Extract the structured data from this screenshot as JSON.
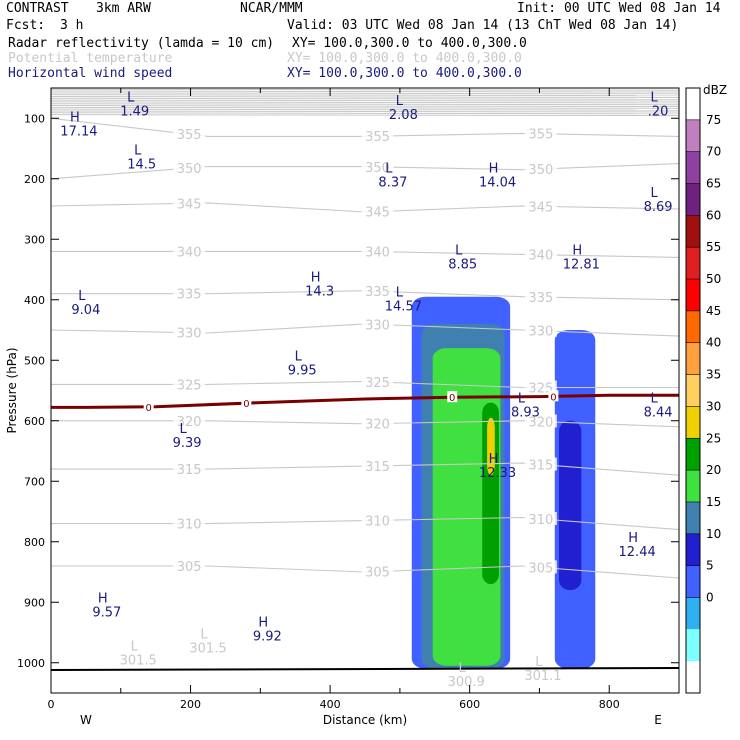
{
  "header": {
    "experiment": "CONTRAST",
    "model": "3km ARW",
    "center": "NCAR/MMM",
    "init": "Init: 00 UTC Wed 08 Jan 14",
    "fcst_label": "Fcst:",
    "fcst_value": "3 h",
    "valid": "Valid: 03 UTC Wed 08 Jan 14 (13 ChT Wed 08 Jan 14)"
  },
  "fields": [
    {
      "name": "Radar reflectivity (lamda = 10 cm)",
      "xy": "XY= 100.0,300.0 to 400.0,300.0",
      "color": "#000000"
    },
    {
      "name": "Potential temperature",
      "xy": "XY= 100.0,300.0 to 400.0,300.0",
      "color": "#c8c8c8"
    },
    {
      "name": "Horizontal wind speed",
      "xy": "XY= 100.0,300.0 to 400.0,300.0",
      "color": "#1a1a80"
    }
  ],
  "chart_data": {
    "type": "heatmap",
    "xlabel": "Distance (km)",
    "ylabel": "Pressure (hPa)",
    "xlim": [
      0,
      900
    ],
    "ylim": [
      1050,
      50
    ],
    "x_ticks": [
      0,
      200,
      400,
      600,
      800
    ],
    "y_ticks": [
      100,
      200,
      300,
      400,
      500,
      600,
      700,
      800,
      900,
      1000
    ],
    "x_end_labels": {
      "left": "W",
      "right": "E"
    },
    "colorbar": {
      "unit": "dBZ",
      "levels": [
        75,
        70,
        65,
        60,
        55,
        50,
        45,
        40,
        35,
        30,
        25,
        20,
        15,
        10,
        5,
        0
      ],
      "colors": [
        "#ffffff",
        "#c080c0",
        "#9040a0",
        "#702080",
        "#a01010",
        "#e02020",
        "#ff0000",
        "#ff6a00",
        "#ffa040",
        "#ffd060",
        "#f0d000",
        "#00a000",
        "#40e040",
        "#4080b0",
        "#2020d0",
        "#4060ff",
        "#30b0f0",
        "#80ffff",
        "#ffffff"
      ]
    },
    "reflectivity_cells": [
      {
        "level": 5,
        "x_range": [
          517,
          658
        ],
        "p_range": [
          395,
          1010
        ]
      },
      {
        "level": 15,
        "x_range": [
          531,
          650
        ],
        "p_range": [
          440,
          1010
        ]
      },
      {
        "level": 20,
        "x_range": [
          547,
          644
        ],
        "p_range": [
          480,
          1005
        ]
      },
      {
        "level": 5,
        "x_range": [
          722,
          780
        ],
        "p_range": [
          450,
          1010
        ]
      },
      {
        "level": 10,
        "x_range": [
          728,
          760
        ],
        "p_range": [
          600,
          880
        ]
      },
      {
        "level": 25,
        "x_range": [
          618,
          642
        ],
        "p_range": [
          570,
          870
        ]
      },
      {
        "level": 30,
        "x_range": [
          625,
          636
        ],
        "p_range": [
          595,
          690
        ]
      }
    ],
    "theta_contours": [
      {
        "value": 355,
        "p": [
          100,
          130,
          130,
          125,
          130
        ]
      },
      {
        "value": 350,
        "p": [
          200,
          180,
          180,
          185,
          175
        ]
      },
      {
        "value": 345,
        "p": [
          245,
          240,
          255,
          245,
          250
        ]
      },
      {
        "value": 340,
        "p": [
          320,
          320,
          320,
          325,
          330
        ]
      },
      {
        "value": 335,
        "p": [
          390,
          390,
          385,
          395,
          400
        ]
      },
      {
        "value": 330,
        "p": [
          450,
          455,
          440,
          450,
          460
        ]
      },
      {
        "value": 325,
        "p": [
          540,
          540,
          535,
          545,
          545
        ]
      },
      {
        "value": 320,
        "p": [
          600,
          600,
          605,
          600,
          610
        ]
      },
      {
        "value": 315,
        "p": [
          680,
          680,
          675,
          670,
          690
        ]
      },
      {
        "value": 310,
        "p": [
          770,
          770,
          765,
          760,
          780
        ]
      },
      {
        "value": 305,
        "p": [
          840,
          840,
          850,
          840,
          860
        ]
      }
    ],
    "zero_line": {
      "label": "0",
      "points": [
        [
          0,
          578
        ],
        [
          50,
          578
        ],
        [
          150,
          577
        ],
        [
          300,
          570
        ],
        [
          450,
          564
        ],
        [
          575,
          561
        ],
        [
          700,
          560
        ],
        [
          800,
          558
        ],
        [
          900,
          558
        ]
      ]
    },
    "wind_extrema": [
      {
        "kind": "L",
        "value": "1.49",
        "x": 120,
        "p": 72
      },
      {
        "kind": "H",
        "value": "17.14",
        "x": 40,
        "p": 105
      },
      {
        "kind": "L",
        "value": "14.5",
        "x": 130,
        "p": 160
      },
      {
        "kind": "L",
        "value": "2.08",
        "x": 505,
        "p": 78
      },
      {
        "kind": "L",
        "value": ".20",
        "x": 870,
        "p": 72
      },
      {
        "kind": "L",
        "value": "8.37",
        "x": 490,
        "p": 190
      },
      {
        "kind": "H",
        "value": "14.04",
        "x": 640,
        "p": 190
      },
      {
        "kind": "L",
        "value": "8.69",
        "x": 870,
        "p": 230
      },
      {
        "kind": "L",
        "value": "8.85",
        "x": 590,
        "p": 325
      },
      {
        "kind": "H",
        "value": "12.81",
        "x": 760,
        "p": 325
      },
      {
        "kind": "H",
        "value": "14.3",
        "x": 385,
        "p": 370
      },
      {
        "kind": "L",
        "value": "9.04",
        "x": 50,
        "p": 400
      },
      {
        "kind": "L",
        "value": "14.57",
        "x": 505,
        "p": 395
      },
      {
        "kind": "L",
        "value": "9.95",
        "x": 360,
        "p": 500
      },
      {
        "kind": "L",
        "value": "9.39",
        "x": 195,
        "p": 620
      },
      {
        "kind": "L",
        "value": "8.93",
        "x": 680,
        "p": 570
      },
      {
        "kind": "L",
        "value": "8.44",
        "x": 870,
        "p": 570
      },
      {
        "kind": "H",
        "value": "12.33",
        "x": 640,
        "p": 670
      },
      {
        "kind": "H",
        "value": "12.44",
        "x": 840,
        "p": 800
      },
      {
        "kind": "H",
        "value": "9.57",
        "x": 80,
        "p": 900
      },
      {
        "kind": "H",
        "value": "9.92",
        "x": 310,
        "p": 940
      }
    ],
    "theta_extrema": [
      {
        "kind": "L",
        "value": "301.5",
        "x": 125,
        "p": 980
      },
      {
        "kind": "L",
        "value": "301.5",
        "x": 225,
        "p": 960
      },
      {
        "kind": "L",
        "value": "300.9",
        "x": 595,
        "p": 1015
      },
      {
        "kind": "L",
        "value": "301.1",
        "x": 705,
        "p": 1005
      }
    ],
    "colors": {
      "theta": "#c8c8c8",
      "wind_label": "#1a1a80",
      "zero_line": "#7a0000",
      "surface": "#000000"
    }
  }
}
